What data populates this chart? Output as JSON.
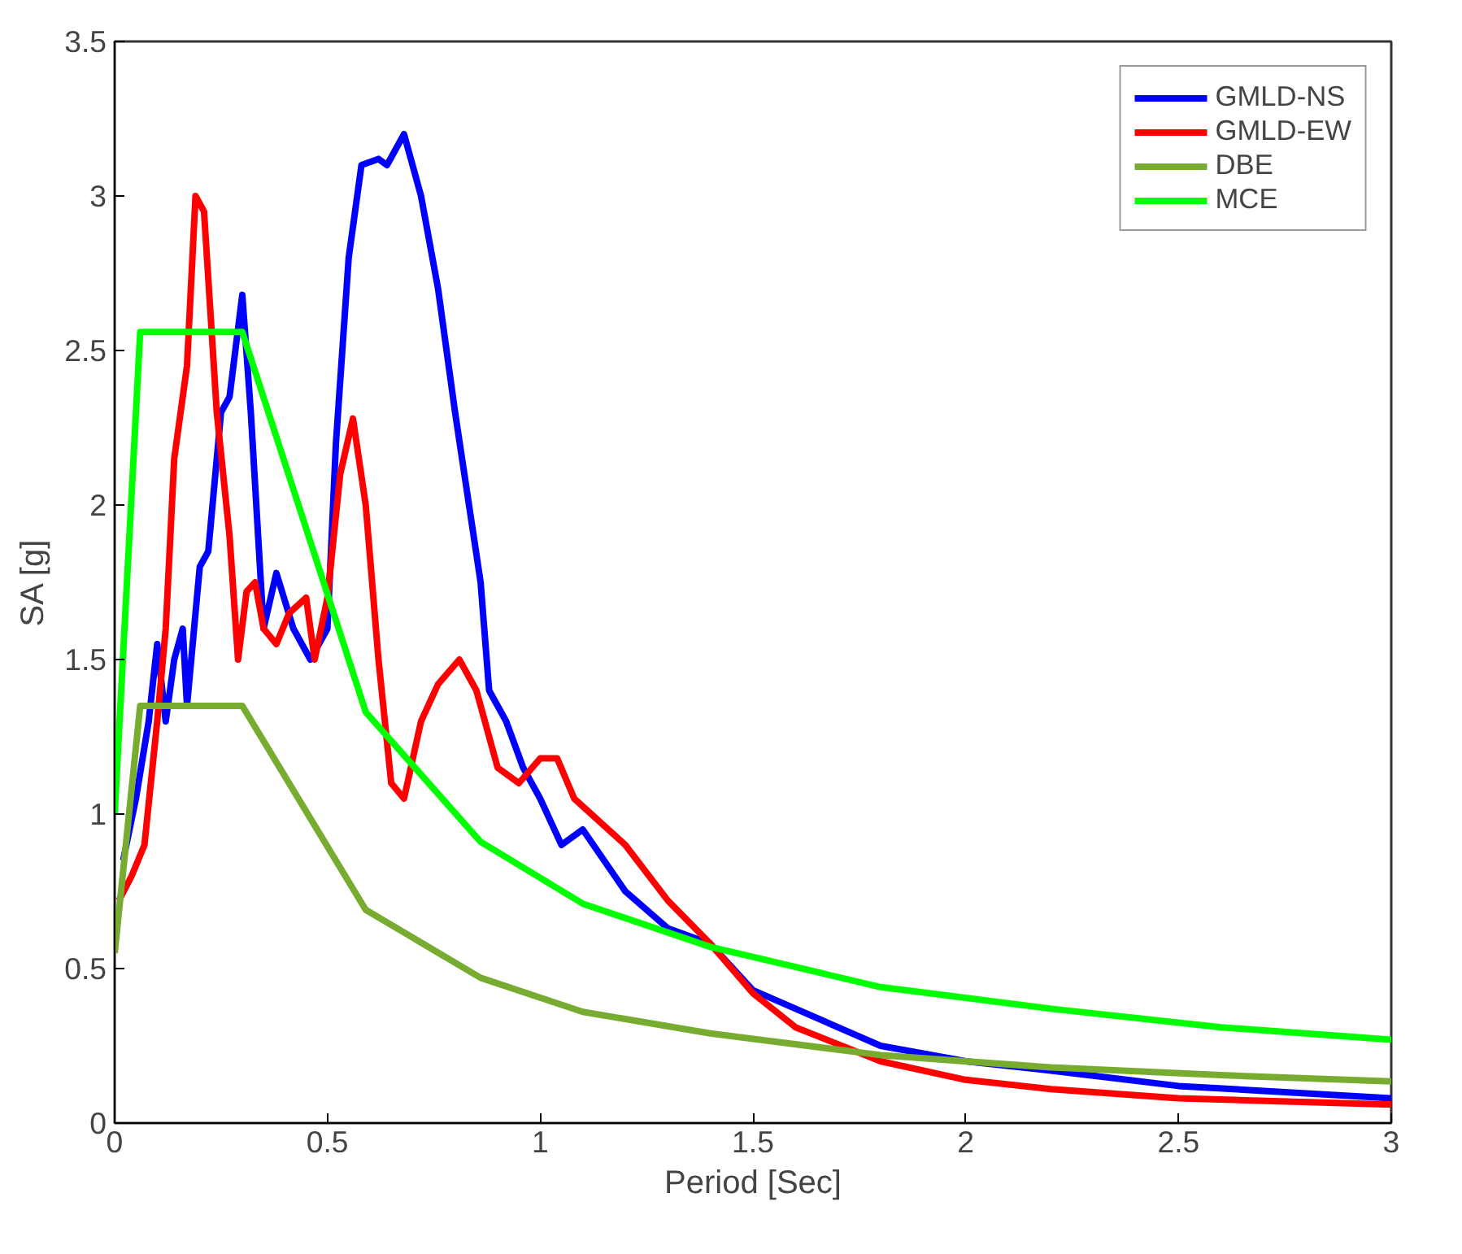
{
  "chart_data": {
    "type": "line",
    "xlabel": "Period [Sec]",
    "ylabel": "SA [g]",
    "xlim": [
      0,
      3
    ],
    "ylim": [
      0,
      3.5
    ],
    "xticks": [
      0,
      0.5,
      1,
      1.5,
      2,
      2.5,
      3
    ],
    "yticks": [
      0,
      0.5,
      1,
      1.5,
      2,
      2.5,
      3,
      3.5
    ],
    "grid": false,
    "legend": "top right",
    "line_style": "solid",
    "marker": "none",
    "series": [
      {
        "name": "GMLD-NS",
        "color": "#0000ff",
        "x": [
          0.02,
          0.05,
          0.08,
          0.1,
          0.12,
          0.14,
          0.16,
          0.17,
          0.2,
          0.22,
          0.25,
          0.27,
          0.3,
          0.32,
          0.35,
          0.38,
          0.42,
          0.46,
          0.5,
          0.52,
          0.55,
          0.58,
          0.62,
          0.64,
          0.68,
          0.72,
          0.76,
          0.8,
          0.86,
          0.88,
          0.92,
          0.96,
          1.0,
          1.05,
          1.1,
          1.15,
          1.2,
          1.3,
          1.4,
          1.5,
          1.6,
          1.8,
          2.0,
          2.2,
          2.5,
          3.0
        ],
        "values": [
          0.85,
          1.05,
          1.3,
          1.55,
          1.3,
          1.5,
          1.6,
          1.35,
          1.8,
          1.85,
          2.3,
          2.35,
          2.68,
          2.3,
          1.6,
          1.78,
          1.6,
          1.5,
          1.6,
          2.2,
          2.8,
          3.1,
          3.12,
          3.1,
          3.2,
          3.0,
          2.7,
          2.3,
          1.75,
          1.4,
          1.3,
          1.15,
          1.05,
          0.9,
          0.95,
          0.85,
          0.75,
          0.63,
          0.58,
          0.43,
          0.37,
          0.25,
          0.2,
          0.17,
          0.12,
          0.08
        ]
      },
      {
        "name": "GMLD-EW",
        "color": "#ff0000",
        "x": [
          0.01,
          0.04,
          0.07,
          0.1,
          0.12,
          0.14,
          0.17,
          0.19,
          0.21,
          0.24,
          0.27,
          0.29,
          0.31,
          0.33,
          0.35,
          0.38,
          0.41,
          0.45,
          0.47,
          0.5,
          0.53,
          0.56,
          0.59,
          0.62,
          0.65,
          0.68,
          0.72,
          0.76,
          0.81,
          0.85,
          0.9,
          0.95,
          1.0,
          1.04,
          1.08,
          1.12,
          1.2,
          1.3,
          1.4,
          1.5,
          1.6,
          1.8,
          2.0,
          2.2,
          2.5,
          3.0
        ],
        "values": [
          0.72,
          0.8,
          0.9,
          1.3,
          1.6,
          2.15,
          2.45,
          3.0,
          2.95,
          2.3,
          1.9,
          1.5,
          1.72,
          1.75,
          1.6,
          1.55,
          1.65,
          1.7,
          1.5,
          1.7,
          2.1,
          2.28,
          2.0,
          1.5,
          1.1,
          1.05,
          1.3,
          1.42,
          1.5,
          1.4,
          1.15,
          1.1,
          1.18,
          1.18,
          1.05,
          1.0,
          0.9,
          0.72,
          0.58,
          0.42,
          0.31,
          0.2,
          0.14,
          0.11,
          0.08,
          0.06
        ]
      },
      {
        "name": "DBE",
        "color": "#77ac30",
        "x": [
          0,
          0.06,
          0.3,
          0.59,
          0.86,
          1.1,
          1.4,
          1.8,
          2.2,
          2.6,
          3.0
        ],
        "values": [
          0.55,
          1.35,
          1.35,
          0.69,
          0.47,
          0.36,
          0.29,
          0.22,
          0.18,
          0.155,
          0.135
        ]
      },
      {
        "name": "MCE",
        "color": "#00ff00",
        "x": [
          0,
          0.06,
          0.3,
          0.59,
          0.86,
          1.1,
          1.4,
          1.8,
          2.2,
          2.6,
          3.0
        ],
        "values": [
          1.0,
          2.56,
          2.56,
          1.33,
          0.91,
          0.71,
          0.57,
          0.44,
          0.37,
          0.31,
          0.27
        ]
      }
    ]
  }
}
